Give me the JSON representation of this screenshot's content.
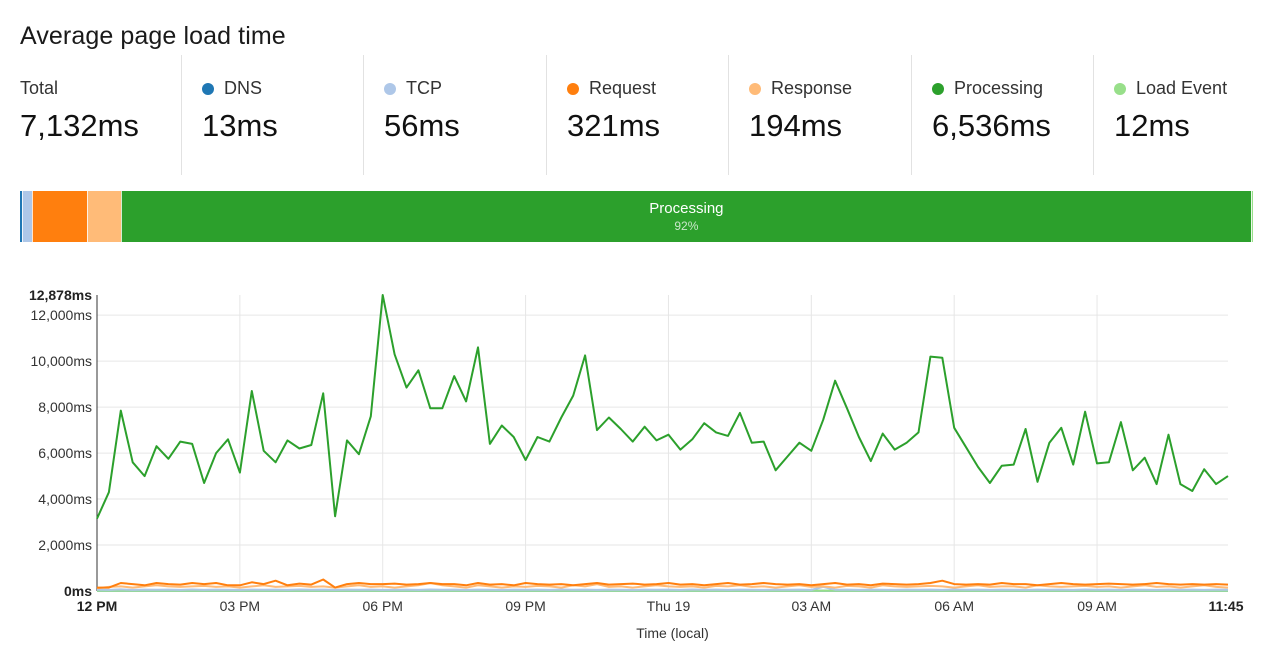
{
  "title": "Average page load time",
  "stats": [
    {
      "label": "Total",
      "value": "7,132ms",
      "color": null
    },
    {
      "label": "DNS",
      "value": "13ms",
      "color": "#1f77b4"
    },
    {
      "label": "TCP",
      "value": "56ms",
      "color": "#aec7e8"
    },
    {
      "label": "Request",
      "value": "321ms",
      "color": "#ff7f0e"
    },
    {
      "label": "Response",
      "value": "194ms",
      "color": "#ffbb78"
    },
    {
      "label": "Processing",
      "value": "6,536ms",
      "color": "#2ca02c"
    },
    {
      "label": "Load Event",
      "value": "12ms",
      "color": "#98df8a"
    }
  ],
  "breakdown_bar": {
    "segments": [
      {
        "name": "DNS",
        "ms": 13,
        "color": "#1f77b4"
      },
      {
        "name": "TCP",
        "ms": 56,
        "color": "#aec7e8"
      },
      {
        "name": "Request",
        "ms": 321,
        "color": "#ff7f0e"
      },
      {
        "name": "Response",
        "ms": 194,
        "color": "#ffbb78"
      },
      {
        "name": "Processing",
        "ms": 6536,
        "color": "#2ca02c",
        "label": "Processing",
        "pct_label": "92%"
      },
      {
        "name": "Load Event",
        "ms": 12,
        "color": "#98df8a"
      }
    ]
  },
  "chart_data": {
    "type": "line",
    "title": "",
    "xlabel": "Time (local)",
    "ylabel": "",
    "ylim": [
      0,
      12878
    ],
    "y_ticks": [
      {
        "value": 0,
        "label": "0ms",
        "bold": true
      },
      {
        "value": 2000,
        "label": "2,000ms"
      },
      {
        "value": 4000,
        "label": "4,000ms"
      },
      {
        "value": 6000,
        "label": "6,000ms"
      },
      {
        "value": 8000,
        "label": "8,000ms"
      },
      {
        "value": 10000,
        "label": "10,000ms"
      },
      {
        "value": 12000,
        "label": "12,000ms"
      },
      {
        "value": 12878,
        "label": "12,878ms",
        "bold": true
      }
    ],
    "x_ticks": [
      {
        "hours": 0,
        "label": "12 PM",
        "bold": true
      },
      {
        "hours": 3,
        "label": "03 PM"
      },
      {
        "hours": 6,
        "label": "06 PM"
      },
      {
        "hours": 9,
        "label": "09 PM"
      },
      {
        "hours": 12,
        "label": "Thu 19"
      },
      {
        "hours": 15,
        "label": "03 AM"
      },
      {
        "hours": 18,
        "label": "06 AM"
      },
      {
        "hours": 21,
        "label": "09 AM"
      },
      {
        "hours": 23.75,
        "label": "11:45",
        "bold": true
      }
    ],
    "grid": true,
    "x_hours": [
      0,
      0.25,
      0.5,
      0.75,
      1,
      1.25,
      1.5,
      1.75,
      2,
      2.25,
      2.5,
      2.75,
      3,
      3.25,
      3.5,
      3.75,
      4,
      4.25,
      4.5,
      4.75,
      5,
      5.25,
      5.5,
      5.75,
      6,
      6.25,
      6.5,
      6.75,
      7,
      7.25,
      7.5,
      7.75,
      8,
      8.25,
      8.5,
      8.75,
      9,
      9.25,
      9.5,
      9.75,
      10,
      10.25,
      10.5,
      10.75,
      11,
      11.25,
      11.5,
      11.75,
      12,
      12.25,
      12.5,
      12.75,
      13,
      13.25,
      13.5,
      13.75,
      14,
      14.25,
      14.5,
      14.75,
      15,
      15.25,
      15.5,
      15.75,
      16,
      16.25,
      16.5,
      16.75,
      17,
      17.25,
      17.5,
      17.75,
      18,
      18.25,
      18.5,
      18.75,
      19,
      19.25,
      19.5,
      19.75,
      20,
      20.25,
      20.5,
      20.75,
      21,
      21.25,
      21.5,
      21.75,
      22,
      22.25,
      22.5,
      22.75,
      23,
      23.25,
      23.5,
      23.75
    ],
    "series": [
      {
        "name": "Processing",
        "color": "#2ca02c",
        "values": [
          3150,
          4300,
          7850,
          5600,
          5000,
          6300,
          5750,
          6500,
          6400,
          4700,
          6000,
          6600,
          5150,
          8700,
          6100,
          5600,
          6550,
          6200,
          6350,
          8600,
          3250,
          6550,
          5950,
          7600,
          12878,
          10300,
          8850,
          9600,
          7950,
          7950,
          9350,
          8250,
          10600,
          6400,
          7200,
          6700,
          5700,
          6700,
          6500,
          7550,
          8500,
          10250,
          7000,
          7550,
          7050,
          6500,
          7150,
          6550,
          6800,
          6150,
          6600,
          7300,
          6900,
          6750,
          7750,
          6450,
          6500,
          5250,
          5850,
          6450,
          6100,
          7450,
          9150,
          7950,
          6700,
          5650,
          6850,
          6150,
          6450,
          6900,
          10200,
          10150,
          7100,
          6250,
          5400,
          4700,
          5450,
          5500,
          7050,
          4750,
          6450,
          7100,
          5500,
          7800,
          5550,
          5600,
          7350,
          5250,
          5800,
          4650,
          6800,
          4650,
          4350,
          5300,
          4650,
          5000
        ]
      },
      {
        "name": "Request",
        "color": "#ff7f0e",
        "values": [
          150,
          150,
          350,
          300,
          250,
          350,
          300,
          280,
          350,
          300,
          350,
          250,
          250,
          380,
          300,
          450,
          250,
          320,
          280,
          500,
          150,
          300,
          350,
          300,
          300,
          320,
          280,
          300,
          350,
          300,
          300,
          250,
          350,
          280,
          300,
          250,
          350,
          300,
          280,
          300,
          250,
          300,
          350,
          280,
          300,
          320,
          280,
          300,
          350,
          280,
          300,
          250,
          300,
          350,
          280,
          300,
          350,
          300,
          280,
          300,
          250,
          300,
          350,
          280,
          300,
          250,
          320,
          300,
          280,
          300,
          350,
          450,
          300,
          280,
          300,
          280,
          350,
          300,
          300,
          250,
          300,
          350,
          300,
          280,
          300,
          320,
          300,
          280,
          300,
          350,
          300,
          280,
          300,
          280,
          300,
          280
        ]
      },
      {
        "name": "Response",
        "color": "#ffbb78",
        "values": [
          120,
          180,
          200,
          150,
          200,
          250,
          200,
          180,
          200,
          220,
          180,
          200,
          150,
          200,
          250,
          180,
          200,
          220,
          180,
          200,
          150,
          200,
          250,
          180,
          200,
          150,
          200,
          250,
          350,
          250,
          200,
          150,
          250,
          200,
          150,
          200,
          180,
          220,
          200,
          150,
          250,
          200,
          300,
          180,
          200,
          150,
          200,
          250,
          200,
          180,
          200,
          150,
          220,
          200,
          250,
          180,
          200,
          150,
          200,
          250,
          180,
          200,
          150,
          220,
          200,
          150,
          250,
          200,
          180,
          200,
          220,
          200,
          150,
          200,
          250,
          180,
          200,
          200,
          150,
          250,
          200,
          180,
          200,
          220,
          180,
          200,
          150,
          200,
          250,
          180,
          200,
          150,
          200,
          250,
          180,
          150
        ]
      },
      {
        "name": "TCP",
        "color": "#aec7e8",
        "values": [
          60,
          50,
          70,
          50,
          60,
          55,
          60,
          50,
          65,
          50,
          60,
          55,
          50,
          60,
          55,
          60,
          50,
          65,
          55,
          60,
          50,
          60,
          55,
          60,
          50,
          55,
          60,
          50,
          65,
          55,
          60,
          50,
          60,
          55,
          50,
          60,
          55,
          60,
          50,
          65,
          55,
          60,
          50,
          60,
          55,
          50,
          60,
          55,
          60,
          50,
          65,
          55,
          60,
          50,
          60,
          55,
          50,
          60,
          55,
          60,
          50,
          180,
          55,
          60,
          50,
          60,
          55,
          50,
          60,
          55,
          60,
          50,
          65,
          55,
          60,
          50,
          60,
          55,
          50,
          60,
          55,
          60,
          50,
          65,
          55,
          60,
          50,
          60,
          55,
          50,
          60,
          55,
          60,
          50,
          60,
          55
        ]
      },
      {
        "name": "Load Event",
        "color": "#98df8a",
        "values": [
          12,
          12,
          14,
          12,
          13,
          12,
          11,
          12,
          13,
          12,
          12,
          14,
          12,
          13,
          12,
          11,
          12,
          13,
          12,
          12,
          14,
          12,
          13,
          12,
          11,
          12,
          13,
          12,
          12,
          14,
          12,
          13,
          12,
          11,
          12,
          13,
          12,
          12,
          14,
          12,
          13,
          12,
          11,
          12,
          13,
          12,
          12,
          14,
          12,
          13,
          12,
          11,
          12,
          13,
          12,
          12,
          14,
          12,
          13,
          12,
          11,
          12,
          13,
          12,
          12,
          14,
          12,
          13,
          12,
          11,
          12,
          13,
          12,
          12,
          14,
          12,
          13,
          12,
          11,
          12,
          13,
          12,
          12,
          14,
          12,
          13,
          12,
          11,
          12,
          13,
          12,
          12,
          14,
          12,
          13,
          12
        ]
      },
      {
        "name": "DNS",
        "color": "#1f77b4",
        "values": [
          13,
          13,
          14,
          13,
          12,
          13,
          14,
          13,
          12,
          13,
          13,
          14,
          13,
          12,
          13,
          14,
          13,
          12,
          13,
          13,
          14,
          13,
          12,
          13,
          14,
          13,
          12,
          13,
          13,
          14,
          13,
          12,
          13,
          14,
          13,
          12,
          13,
          13,
          14,
          13,
          12,
          13,
          14,
          13,
          12,
          13,
          13,
          14,
          13,
          12,
          13,
          14,
          13,
          12,
          13,
          13,
          14,
          13,
          12,
          13,
          14,
          13,
          12,
          13,
          13,
          14,
          13,
          12,
          13,
          14,
          13,
          12,
          13,
          13,
          14,
          13,
          12,
          13,
          14,
          13,
          12,
          13,
          13,
          14,
          13,
          12,
          13,
          14,
          13,
          12,
          13,
          13,
          14,
          13,
          12,
          13
        ]
      }
    ]
  }
}
